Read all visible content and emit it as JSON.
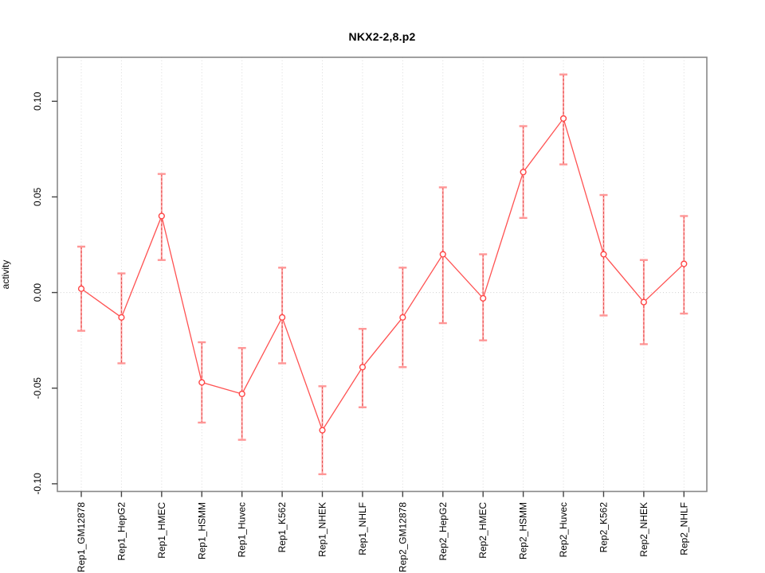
{
  "title": "NKX2-2,8.p2",
  "chart_data": {
    "type": "line",
    "title": "NKX2-2,8.p2",
    "xlabel": "",
    "ylabel": "activity",
    "legend": "none",
    "grid": "vertical dotted gridline at each category; dotted horizontal line at y=0",
    "marker": "open-circle",
    "error_bars": true,
    "categories": [
      "Rep1_GM12878",
      "Rep1_HepG2",
      "Rep1_HMEC",
      "Rep1_HSMM",
      "Rep1_Huvec",
      "Rep1_K562",
      "Rep1_NHEK",
      "Rep1_NHLF",
      "Rep2_GM12878",
      "Rep2_HepG2",
      "Rep2_HMEC",
      "Rep2_HSMM",
      "Rep2_Huvec",
      "Rep2_K562",
      "Rep2_NHEK",
      "Rep2_NHLF"
    ],
    "series": [
      {
        "name": "activity",
        "values": [
          0.002,
          -0.013,
          0.04,
          -0.047,
          -0.053,
          -0.013,
          -0.072,
          -0.039,
          -0.013,
          0.02,
          -0.003,
          0.063,
          0.091,
          0.02,
          -0.005,
          0.015
        ],
        "ci_high": [
          0.024,
          0.01,
          0.062,
          -0.026,
          -0.029,
          0.013,
          -0.049,
          -0.019,
          0.013,
          0.055,
          0.02,
          0.087,
          0.114,
          0.051,
          0.017,
          0.04
        ],
        "ci_low": [
          -0.02,
          -0.037,
          0.017,
          -0.068,
          -0.077,
          -0.037,
          -0.095,
          -0.06,
          -0.039,
          -0.016,
          -0.025,
          0.039,
          0.067,
          -0.012,
          -0.027,
          -0.011
        ]
      }
    ],
    "yticks": [
      -0.1,
      -0.05,
      0.0,
      0.05,
      0.1
    ],
    "ytick_labels": [
      "-0.10",
      "-0.05",
      "0.00",
      "0.05",
      "0.10"
    ],
    "ylim": [
      -0.104,
      0.123
    ],
    "colors": {
      "series_line": "#ff5252",
      "marker_stroke": "#ff4545",
      "error_cap": "#ff9696",
      "error_line": "#ffa4a4",
      "error_dash": "#e04848",
      "gridline": "#d9d9d9",
      "zero_line": "#cfcfcf",
      "box": "#888888",
      "tick": "#444444",
      "text": "#000000"
    }
  }
}
